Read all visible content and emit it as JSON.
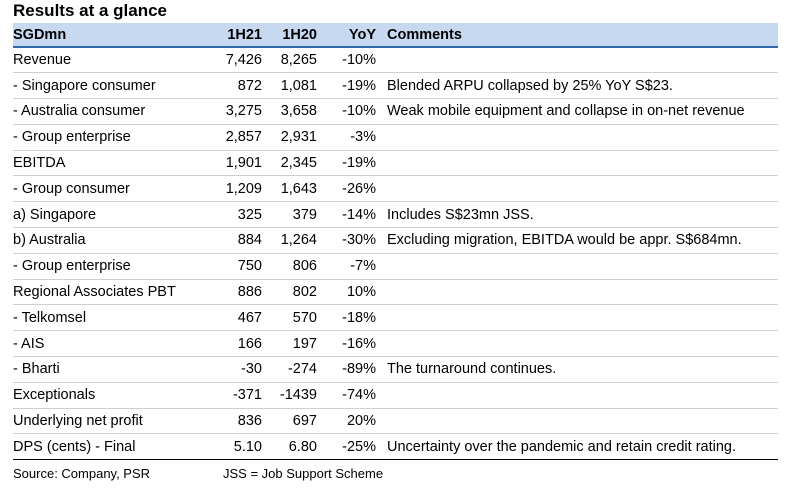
{
  "title": "Results at a glance",
  "header": {
    "label": "SGDmn",
    "col_1h21": "1H21",
    "col_1h20": "1H20",
    "col_yoy": "YoY",
    "col_comments": "Comments"
  },
  "rows": [
    {
      "label": "Revenue",
      "h21": "7,426",
      "h20": "8,265",
      "yoy": "-10%",
      "comment": ""
    },
    {
      "label": " - Singapore consumer",
      "h21": "872",
      "h20": "1,081",
      "yoy": "-19%",
      "comment": "Blended ARPU collapsed by 25% YoY S$23."
    },
    {
      "label": " - Australia consumer",
      "h21": "3,275",
      "h20": "3,658",
      "yoy": "-10%",
      "comment": "Weak mobile equipment and collapse in on-net revenue"
    },
    {
      "label": " - Group enterprise",
      "h21": "2,857",
      "h20": "2,931",
      "yoy": "-3%",
      "comment": ""
    },
    {
      "label": "EBITDA",
      "h21": "1,901",
      "h20": "2,345",
      "yoy": "-19%",
      "comment": ""
    },
    {
      "label": " - Group consumer",
      "h21": "1,209",
      "h20": "1,643",
      "yoy": "-26%",
      "comment": ""
    },
    {
      "label": "a) Singapore",
      "h21": "325",
      "h20": "379",
      "yoy": "-14%",
      "comment": "Includes S$23mn JSS."
    },
    {
      "label": "b) Australia",
      "h21": "884",
      "h20": "1,264",
      "yoy": "-30%",
      "comment": "Excluding migration, EBITDA would be appr. S$684mn."
    },
    {
      "label": " - Group enterprise",
      "h21": "750",
      "h20": "806",
      "yoy": "-7%",
      "comment": ""
    },
    {
      "label": "Regional Associates PBT",
      "h21": "886",
      "h20": "802",
      "yoy": "10%",
      "comment": ""
    },
    {
      "label": " - Telkomsel",
      "h21": "467",
      "h20": "570",
      "yoy": "-18%",
      "comment": ""
    },
    {
      "label": " - AIS",
      "h21": "166",
      "h20": "197",
      "yoy": "-16%",
      "comment": ""
    },
    {
      "label": " - Bharti",
      "h21": "-30",
      "h20": "-274",
      "yoy": "-89%",
      "comment": "The turnaround continues."
    },
    {
      "label": "Exceptionals",
      "h21": "-371",
      "h20": "-1439",
      "yoy": "-74%",
      "comment": ""
    },
    {
      "label": "Underlying net profit",
      "h21": "836",
      "h20": "697",
      "yoy": "20%",
      "comment": ""
    },
    {
      "label": "DPS (cents)  - Final",
      "h21": "5.10",
      "h20": "6.80",
      "yoy": "-25%",
      "comment": "Uncertainty over the pandemic and retain credit rating."
    }
  ],
  "footer": {
    "source": "Source: Company, PSR",
    "note": "JSS = Job Support Scheme"
  }
}
